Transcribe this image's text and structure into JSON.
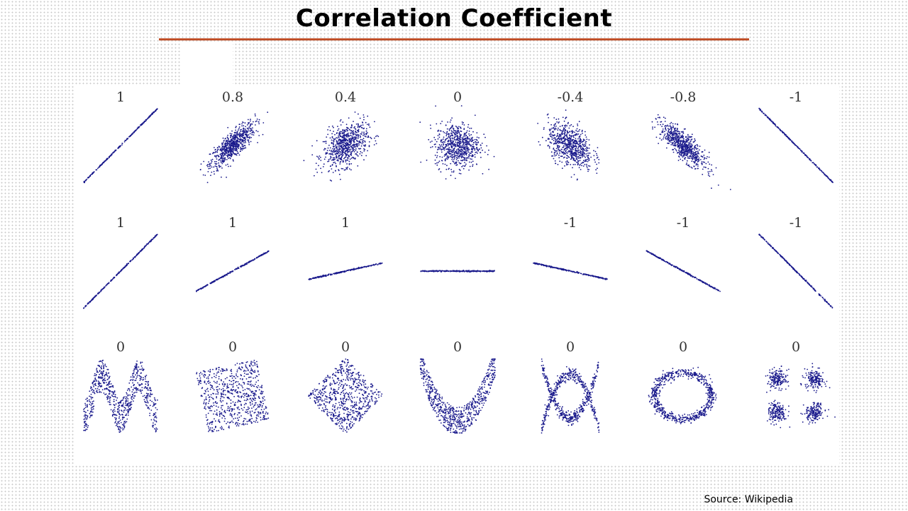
{
  "slide": {
    "title": "Correlation Coefficient",
    "source": "Source: Wikipedia"
  },
  "colors": {
    "title_rule": "#c0502a",
    "points": "#1a1a8c"
  },
  "chart_data": {
    "type": "scatter",
    "title": "",
    "grid": false,
    "rows": [
      {
        "panels": [
          {
            "label": "1",
            "kind": "linear",
            "slope": 1,
            "noise": 0
          },
          {
            "label": "0.8",
            "kind": "gaussian",
            "r": 0.8
          },
          {
            "label": "0.4",
            "kind": "gaussian",
            "r": 0.4
          },
          {
            "label": "0",
            "kind": "gaussian",
            "r": 0
          },
          {
            "label": "-0.4",
            "kind": "gaussian",
            "r": -0.4
          },
          {
            "label": "-0.8",
            "kind": "gaussian",
            "r": -0.8
          },
          {
            "label": "-1",
            "kind": "linear",
            "slope": -1,
            "noise": 0
          }
        ]
      },
      {
        "panels": [
          {
            "label": "1",
            "kind": "linear",
            "slope": 1
          },
          {
            "label": "1",
            "kind": "linear",
            "slope": 0.55
          },
          {
            "label": "1",
            "kind": "linear",
            "slope": 0.22
          },
          {
            "label": "",
            "kind": "linear",
            "slope": 0
          },
          {
            "label": "-1",
            "kind": "linear",
            "slope": -0.22
          },
          {
            "label": "-1",
            "kind": "linear",
            "slope": -0.55
          },
          {
            "label": "-1",
            "kind": "linear",
            "slope": -1
          }
        ]
      },
      {
        "panels": [
          {
            "label": "0",
            "kind": "wave"
          },
          {
            "label": "0",
            "kind": "rotated-square",
            "angle_deg": 12
          },
          {
            "label": "0",
            "kind": "rotated-square",
            "angle_deg": 45
          },
          {
            "label": "0",
            "kind": "parabola"
          },
          {
            "label": "0",
            "kind": "cross"
          },
          {
            "label": "0",
            "kind": "ring"
          },
          {
            "label": "0",
            "kind": "clusters"
          }
        ]
      }
    ]
  }
}
